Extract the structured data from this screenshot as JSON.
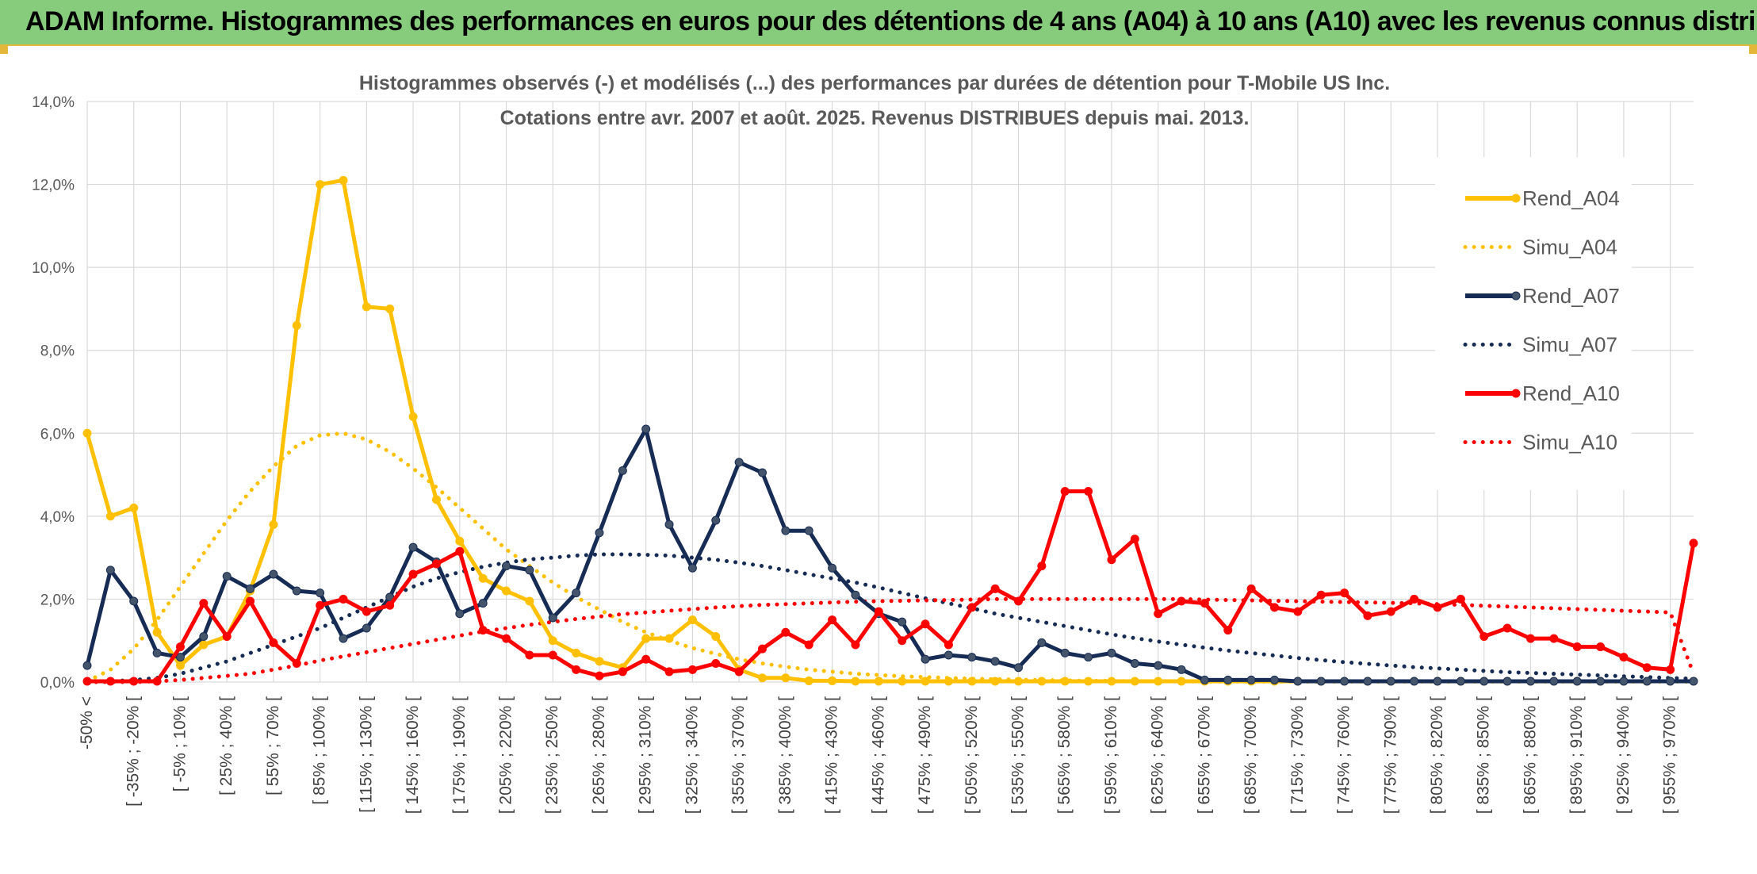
{
  "header": {
    "title": "ADAM Informe. Histogrammes des performances en euros pour des détentions de 4 ans (A04) à 10 ans (A10) avec les revenus connus distribués"
  },
  "colors": {
    "banner": "#86cc7c",
    "A04": "#ffc000",
    "A07": "#172c55",
    "A10": "#ff0000",
    "grid": "#d9d9d9"
  },
  "chart_data": {
    "type": "line",
    "title_lines": [
      "Histogrammes observés (-) et modélisés (...) des performances par durées de détention pour T-Mobile US Inc.",
      "Cotations entre avr. 2007 et août. 2025. Revenus DISTRIBUES depuis mai. 2013."
    ],
    "xlabel": "",
    "ylabel": "",
    "ylim": [
      0,
      14
    ],
    "y_unit": "%",
    "yticks": [
      "0,0%",
      "2,0%",
      "4,0%",
      "6,0%",
      "8,0%",
      "10,0%",
      "12,0%",
      "14,0%"
    ],
    "grid": true,
    "legend_position": "right",
    "category_count": 70,
    "category_labels": [
      "-50% <",
      "[ -35% ; -20% [",
      "[ -5% ; 10% [",
      "[ 25% ; 40% [",
      "[ 55% ; 70% [",
      "[ 85% ; 100% [",
      "[ 115% ; 130% [",
      "[ 145% ; 160% [",
      "[ 175% ; 190% [",
      "[ 205% ; 220% [",
      "[ 235% ; 250% [",
      "[ 265% ; 280% [",
      "[ 295% ; 310% [",
      "[ 325% ; 340% [",
      "[ 355% ; 370% [",
      "[ 385% ; 400% [",
      "[ 415% ; 430% [",
      "[ 445% ; 460% [",
      "[ 475% ; 490% [",
      "[ 505% ; 520% [",
      "[ 535% ; 550% [",
      "[ 565% ; 580% [",
      "[ 595% ; 610% [",
      "[ 625% ; 640% [",
      "[ 655% ; 670% [",
      "[ 685% ; 700% [",
      "[ 715% ; 730% [",
      "[ 745% ; 760% [",
      "[ 775% ; 790% [",
      "[ 805% ; 820% [",
      "[ 835% ; 850% [",
      "[ 865% ; 880% [",
      "[ 895% ; 910% [",
      "[ 925% ; 940% [",
      "[ 955% ; 970% ["
    ],
    "label_every": 2,
    "series": [
      {
        "name": "Rend_A04",
        "style": "solid",
        "color": "#ffc000",
        "values": [
          6.0,
          4.0,
          4.2,
          1.2,
          0.4,
          0.9,
          1.1,
          2.2,
          3.8,
          8.6,
          12.0,
          12.1,
          9.05,
          9.0,
          6.4,
          4.4,
          3.4,
          2.5,
          2.2,
          1.95,
          1.0,
          0.7,
          0.5,
          0.35,
          1.05,
          1.05,
          1.5,
          1.1,
          0.3,
          0.1,
          0.1,
          0.03,
          0.03,
          0.02,
          0.02,
          0.02,
          0.02,
          0.02,
          0.02,
          0.02,
          0.02,
          0.02,
          0.02,
          0.02,
          0.02,
          0.02,
          0.02,
          0.02,
          0.02,
          0.02,
          0.02,
          0.02,
          0.02,
          0.02,
          0.02,
          0.02,
          0.02,
          0.02,
          0.02,
          0.02,
          0.02,
          0.02,
          0.02,
          0.02,
          0.02,
          0.02,
          0.02,
          0.02,
          0.02,
          0.02
        ]
      },
      {
        "name": "Simu_A04",
        "style": "dotted",
        "color": "#ffc000",
        "values": [
          0.02,
          0.3,
          0.8,
          1.5,
          2.3,
          3.1,
          3.9,
          4.6,
          5.2,
          5.7,
          5.95,
          6.0,
          5.85,
          5.55,
          5.15,
          4.7,
          4.2,
          3.7,
          3.2,
          2.8,
          2.4,
          2.05,
          1.75,
          1.45,
          1.2,
          1.0,
          0.82,
          0.68,
          0.55,
          0.45,
          0.37,
          0.3,
          0.25,
          0.2,
          0.17,
          0.14,
          0.12,
          0.1,
          0.08,
          0.07,
          0.06,
          0.05,
          0.04,
          0.03,
          0.03,
          0.02,
          0.02,
          0.02,
          0.01,
          0.01,
          0.01,
          0.01,
          0.01,
          0.01,
          0.01,
          0.01,
          0.01,
          0.01,
          0.01,
          0.01,
          0.01,
          0.01,
          0.01,
          0.01,
          0.01,
          0.01,
          0.01,
          0.01,
          0.01,
          0.01
        ]
      },
      {
        "name": "Rend_A07",
        "style": "solid",
        "color": "#172c55",
        "values": [
          0.4,
          2.7,
          1.95,
          0.7,
          0.6,
          1.1,
          2.55,
          2.25,
          2.6,
          2.2,
          2.15,
          1.05,
          1.3,
          2.05,
          3.25,
          2.9,
          1.65,
          1.9,
          2.8,
          2.7,
          1.55,
          2.15,
          3.6,
          5.1,
          6.1,
          3.8,
          2.75,
          3.9,
          5.3,
          5.05,
          3.65,
          3.65,
          2.75,
          2.1,
          1.65,
          1.45,
          0.55,
          0.65,
          0.6,
          0.5,
          0.35,
          0.95,
          0.7,
          0.6,
          0.7,
          0.45,
          0.4,
          0.3,
          0.05,
          0.05,
          0.05,
          0.05,
          0.02,
          0.02,
          0.02,
          0.02,
          0.02,
          0.02,
          0.02,
          0.02,
          0.02,
          0.02,
          0.02,
          0.02,
          0.02,
          0.02,
          0.02,
          0.02,
          0.02,
          0.02
        ]
      },
      {
        "name": "Simu_A07",
        "style": "dotted",
        "color": "#172c55",
        "values": [
          0.0,
          0.02,
          0.05,
          0.1,
          0.2,
          0.35,
          0.5,
          0.7,
          0.9,
          1.1,
          1.3,
          1.55,
          1.8,
          2.05,
          2.3,
          2.5,
          2.65,
          2.78,
          2.88,
          2.96,
          3.0,
          3.05,
          3.08,
          3.08,
          3.07,
          3.05,
          3.0,
          2.95,
          2.88,
          2.8,
          2.7,
          2.6,
          2.5,
          2.4,
          2.28,
          2.15,
          2.02,
          1.9,
          1.78,
          1.65,
          1.55,
          1.45,
          1.35,
          1.25,
          1.15,
          1.06,
          0.98,
          0.9,
          0.83,
          0.76,
          0.7,
          0.64,
          0.58,
          0.53,
          0.48,
          0.44,
          0.4,
          0.36,
          0.33,
          0.3,
          0.27,
          0.24,
          0.22,
          0.2,
          0.18,
          0.16,
          0.14,
          0.12,
          0.1,
          0.08
        ]
      },
      {
        "name": "Rend_A10",
        "style": "solid",
        "color": "#ff0000",
        "values": [
          0.02,
          0.02,
          0.02,
          0.02,
          0.85,
          1.9,
          1.1,
          1.95,
          0.95,
          0.45,
          1.85,
          2.0,
          1.7,
          1.85,
          2.6,
          2.85,
          3.15,
          1.25,
          1.05,
          0.65,
          0.65,
          0.3,
          0.15,
          0.25,
          0.55,
          0.25,
          0.3,
          0.45,
          0.25,
          0.8,
          1.2,
          0.9,
          1.5,
          0.9,
          1.7,
          1.0,
          1.4,
          0.9,
          1.8,
          2.25,
          1.95,
          2.8,
          4.6,
          4.6,
          2.95,
          3.45,
          1.65,
          1.95,
          1.9,
          1.25,
          2.25,
          1.8,
          1.7,
          2.1,
          2.15,
          1.6,
          1.7,
          2.0,
          1.8,
          2.0,
          1.1,
          1.3,
          1.05,
          1.05,
          0.85,
          0.85,
          0.6,
          0.35,
          0.3,
          3.35
        ]
      },
      {
        "name": "Simu_A10",
        "style": "dotted",
        "color": "#ff0000",
        "values": [
          0.0,
          0.0,
          0.0,
          0.02,
          0.05,
          0.1,
          0.15,
          0.2,
          0.3,
          0.4,
          0.52,
          0.62,
          0.72,
          0.82,
          0.92,
          1.02,
          1.12,
          1.22,
          1.3,
          1.38,
          1.45,
          1.52,
          1.58,
          1.64,
          1.68,
          1.72,
          1.76,
          1.8,
          1.83,
          1.86,
          1.88,
          1.9,
          1.92,
          1.94,
          1.95,
          1.96,
          1.97,
          1.98,
          1.99,
          2.0,
          2.0,
          2.0,
          2.0,
          2.0,
          2.0,
          2.0,
          2.0,
          2.0,
          1.99,
          1.98,
          1.97,
          1.96,
          1.95,
          1.94,
          1.93,
          1.92,
          1.91,
          1.9,
          1.88,
          1.86,
          1.84,
          1.82,
          1.8,
          1.78,
          1.76,
          1.74,
          1.72,
          1.7,
          1.68,
          0.2
        ]
      }
    ]
  }
}
